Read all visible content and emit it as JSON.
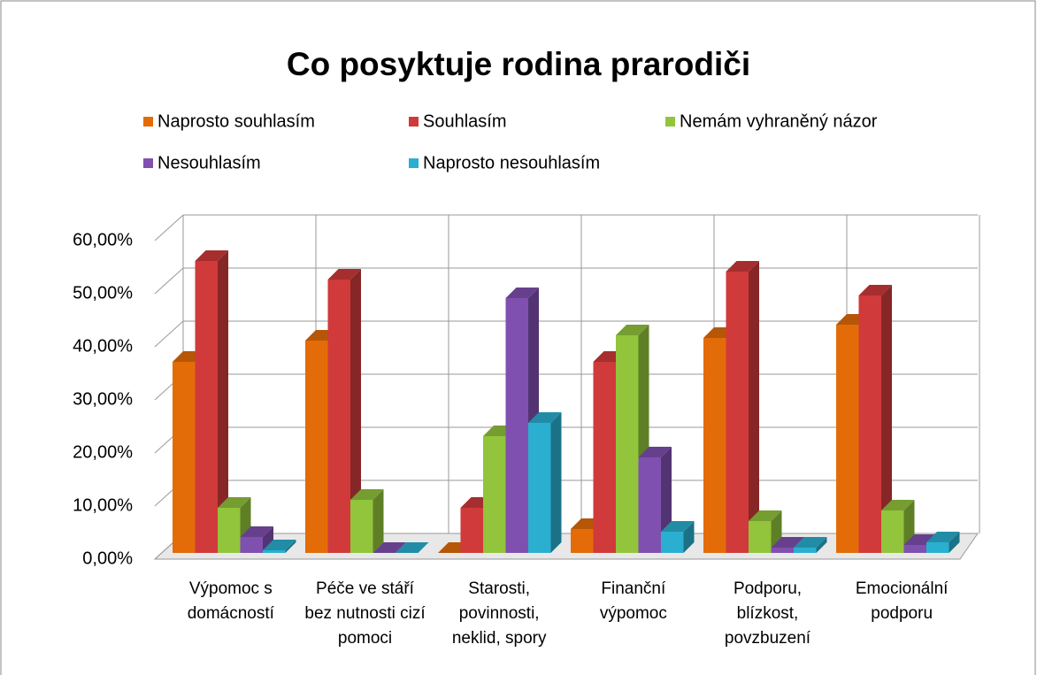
{
  "chart_data": {
    "type": "bar3d",
    "title": "Co posyktuje rodina prarodiči",
    "categories": [
      "Výpomoc s domácností",
      "Péče ve stáří bez nutnosti cizí pomoci",
      "Starosti, povinnosti, neklid, spory",
      "Finanční výpomoc",
      "Podporu, blízkost, povzbuzení",
      "Emocionální podporu"
    ],
    "series": [
      {
        "name": "Naprosto souhlasím",
        "color": "#e36c09",
        "values": [
          36,
          40,
          0,
          4.5,
          40.5,
          43
        ]
      },
      {
        "name": "Souhlasím",
        "color": "#d03a3a",
        "values": [
          55,
          51.5,
          8.5,
          36,
          53,
          48.5
        ]
      },
      {
        "name": "Nemám vyhraněný názor",
        "color": "#92c43c",
        "values": [
          8.5,
          10,
          22,
          41,
          6,
          8
        ]
      },
      {
        "name": "Nesouhlasím",
        "color": "#8050b0",
        "values": [
          3,
          0,
          48,
          18,
          1,
          1.5
        ]
      },
      {
        "name": "Naprosto nesouhlasím",
        "color": "#2aafd0",
        "values": [
          0.5,
          0,
          24.5,
          4,
          1,
          2
        ]
      }
    ],
    "ylim": [
      0,
      60
    ],
    "yticks": [
      {
        "value": 0,
        "label": "0,00%"
      },
      {
        "value": 10,
        "label": "10,00%"
      },
      {
        "value": 20,
        "label": "20,00%"
      },
      {
        "value": 30,
        "label": "30,00%"
      },
      {
        "value": 40,
        "label": "40,00%"
      },
      {
        "value": 50,
        "label": "50,00%"
      },
      {
        "value": 60,
        "label": "60,00%"
      }
    ],
    "grid": true
  }
}
